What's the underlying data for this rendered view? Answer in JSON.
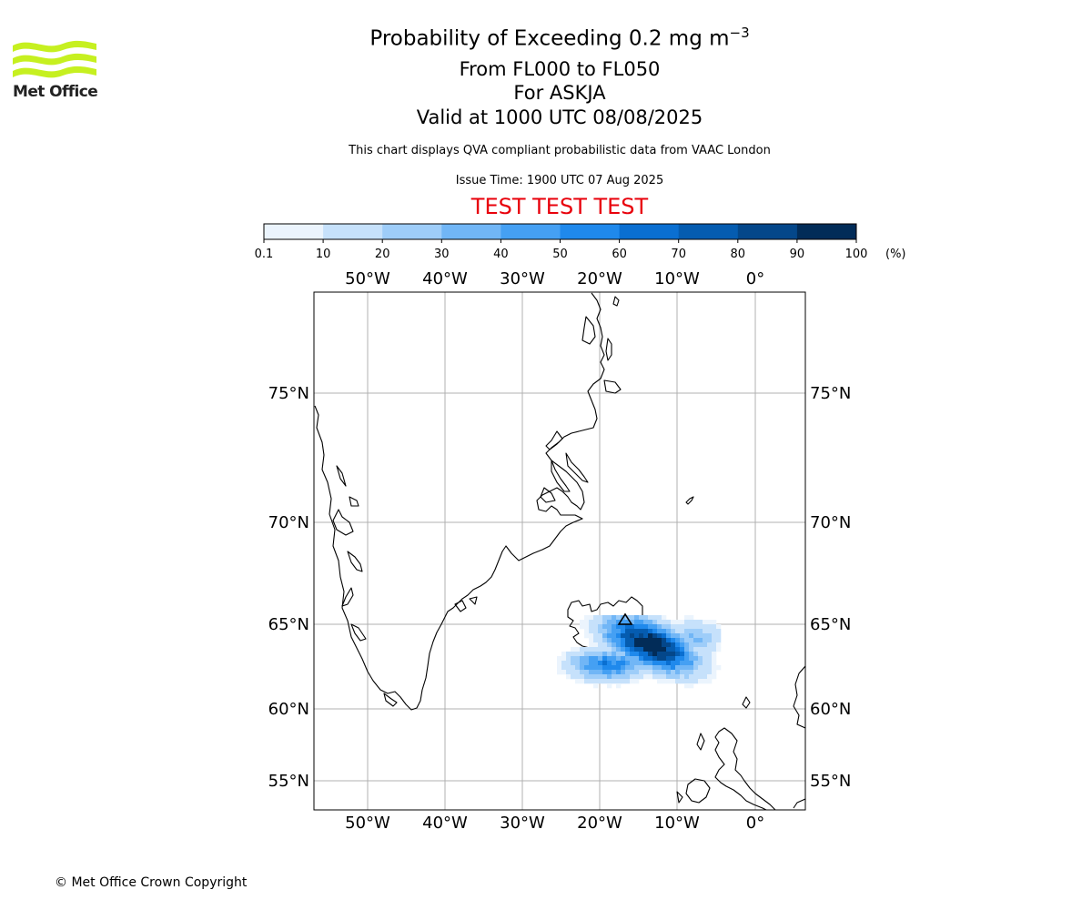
{
  "header": {
    "logo_text": "Met Office",
    "title_main": "Probability of Exceeding 0.2 mg m",
    "title_exponent": "−3",
    "title_level": "From FL000 to FL050",
    "title_volcano": "For ASKJA",
    "title_valid": "Valid at 1000 UTC 08/08/2025",
    "subtitle_note": "This chart displays QVA compliant probabilistic data from VAAC London",
    "issue_time": "Issue Time: 1900 UTC 07 Aug 2025",
    "test_banner": "TEST TEST TEST"
  },
  "colorbar": {
    "ticks": [
      "0.1",
      "10",
      "20",
      "30",
      "40",
      "50",
      "60",
      "70",
      "80",
      "90",
      "100"
    ],
    "unit": "(%)",
    "colors": [
      "#ebf4fd",
      "#c6e1fb",
      "#9ecdf9",
      "#71b6f6",
      "#45a0f3",
      "#1f89ec",
      "#0a6fd1",
      "#055cb0",
      "#04478a",
      "#022c58"
    ]
  },
  "map": {
    "lon_labels": [
      "50°W",
      "40°W",
      "30°W",
      "20°W",
      "10°W",
      "0°"
    ],
    "lat_labels": [
      "75°N",
      "70°N",
      "65°N",
      "60°N",
      "55°N"
    ],
    "volcano_marker": "triangle",
    "plume_colors_ref": "colorbar.colors"
  },
  "footer": {
    "copyright": "© Met Office Crown Copyright"
  }
}
